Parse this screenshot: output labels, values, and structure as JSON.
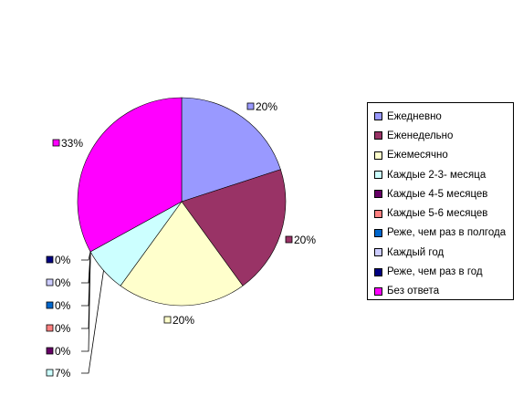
{
  "chart_data": {
    "type": "pie",
    "categories": [
      "Ежедневно",
      "Еженедельно",
      "Ежемесячно",
      "Каждые 2-3- месяца",
      "Каждые 4-5 месяцев",
      "Каждые 5-6 месяцев",
      "Реже, чем раз в полгода",
      "Каждый год",
      "Реже, чем раз в год",
      "Без ответа"
    ],
    "values": [
      20,
      20,
      20,
      7,
      0,
      0,
      0,
      0,
      0,
      33
    ],
    "value_labels": [
      "20%",
      "20%",
      "20%",
      "7%",
      "0%",
      "0%",
      "0%",
      "0%",
      "0%",
      "33%"
    ],
    "colors": [
      "#9999ff",
      "#993366",
      "#ffffcc",
      "#ccffff",
      "#660066",
      "#ff8080",
      "#0066cc",
      "#ccccff",
      "#000080",
      "#ff00ff"
    ],
    "legend_position": "right"
  }
}
